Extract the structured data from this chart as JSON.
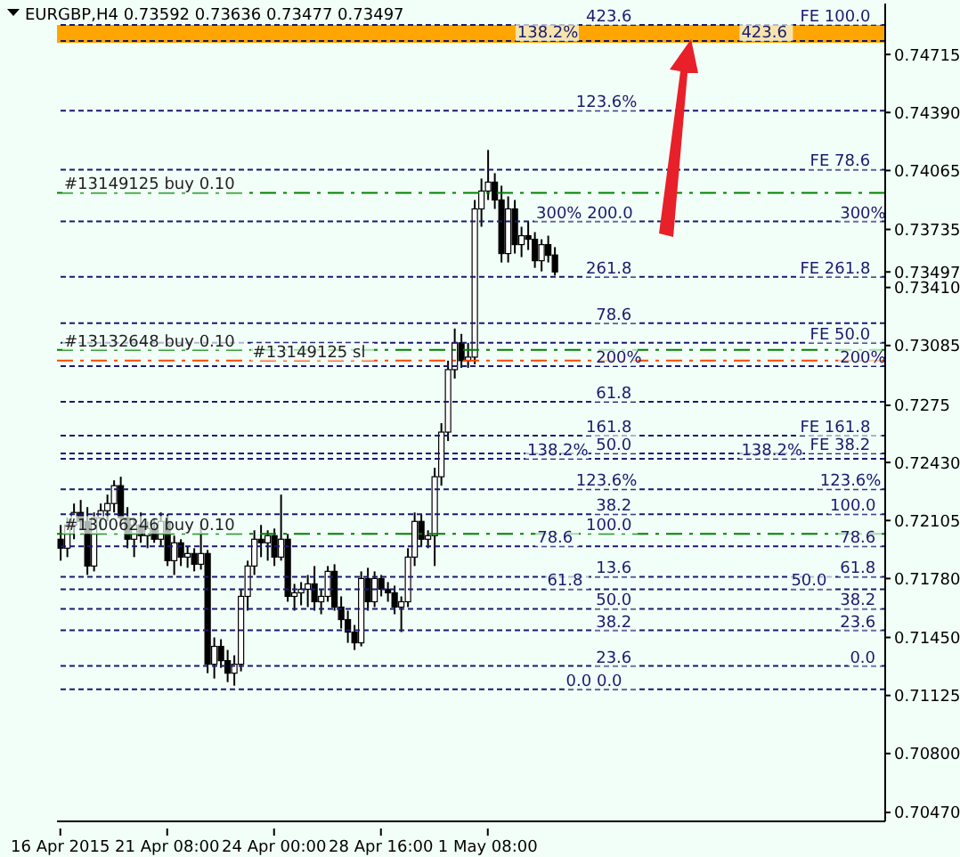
{
  "chart_data": {
    "type": "candlestick",
    "title": "EURGBP,H4  0.73592 0.73636 0.73477 0.73497",
    "categories": [
      "16 Apr 2015",
      null,
      null,
      null,
      null,
      null,
      null,
      null,
      null,
      null,
      null,
      null,
      null,
      null,
      null,
      null,
      "21 Apr 08:00",
      null,
      null,
      null,
      null,
      null,
      null,
      null,
      null,
      null,
      null,
      null,
      null,
      null,
      null,
      null,
      "24 Apr 00:00",
      null,
      null,
      null,
      null,
      null,
      null,
      null,
      null,
      null,
      null,
      null,
      null,
      null,
      null,
      null,
      "28 Apr 16:00",
      null,
      null,
      null,
      null,
      null,
      null,
      null,
      null,
      null,
      null,
      null,
      null,
      null,
      null,
      null,
      "1 May 08:00",
      null,
      null,
      null,
      null,
      null,
      null,
      null,
      null,
      null,
      null,
      null,
      null,
      null,
      null,
      null,
      null,
      null,
      null,
      null,
      null,
      null,
      null,
      null,
      null,
      null,
      null,
      null,
      null,
      null,
      null,
      null,
      null,
      null,
      null,
      null,
      null,
      null,
      null,
      null,
      null,
      null,
      null,
      null,
      null,
      null,
      null,
      null,
      null,
      null,
      null,
      null,
      null,
      null,
      null,
      null,
      null,
      null,
      null,
      null
    ],
    "ohlc": [
      [
        0.72,
        0.7208,
        0.7188,
        0.7195
      ],
      [
        0.7195,
        0.7212,
        0.719,
        0.7208
      ],
      [
        0.7208,
        0.722,
        0.72,
        0.7215
      ],
      [
        0.7215,
        0.7222,
        0.7205,
        0.721
      ],
      [
        0.721,
        0.7218,
        0.718,
        0.7185
      ],
      [
        0.7185,
        0.7215,
        0.7182,
        0.7212
      ],
      [
        0.7212,
        0.722,
        0.7205,
        0.7216
      ],
      [
        0.7216,
        0.7225,
        0.721,
        0.722
      ],
      [
        0.722,
        0.7233,
        0.7215,
        0.723
      ],
      [
        0.723,
        0.7235,
        0.721,
        0.7212
      ],
      [
        0.7212,
        0.7218,
        0.7195,
        0.72
      ],
      [
        0.72,
        0.7212,
        0.719,
        0.7208
      ],
      [
        0.7208,
        0.7215,
        0.7198,
        0.7202
      ],
      [
        0.7202,
        0.721,
        0.7195,
        0.7206
      ],
      [
        0.7206,
        0.7212,
        0.7198,
        0.72
      ],
      [
        0.72,
        0.7215,
        0.7196,
        0.721
      ],
      [
        0.721,
        0.7214,
        0.7185,
        0.7188
      ],
      [
        0.7188,
        0.7202,
        0.718,
        0.7198
      ],
      [
        0.7198,
        0.72,
        0.7185,
        0.719
      ],
      [
        0.719,
        0.7196,
        0.7184,
        0.7192
      ],
      [
        0.7192,
        0.7195,
        0.7182,
        0.7186
      ],
      [
        0.7186,
        0.721,
        0.7183,
        0.7192
      ],
      [
        0.7192,
        0.7194,
        0.7125,
        0.713
      ],
      [
        0.713,
        0.7145,
        0.7122,
        0.714
      ],
      [
        0.714,
        0.7144,
        0.7128,
        0.7132
      ],
      [
        0.7132,
        0.7138,
        0.712,
        0.7125
      ],
      [
        0.7125,
        0.7135,
        0.7118,
        0.713
      ],
      [
        0.713,
        0.7172,
        0.7126,
        0.7168
      ],
      [
        0.7168,
        0.7188,
        0.716,
        0.7185
      ],
      [
        0.7185,
        0.7205,
        0.718,
        0.72
      ],
      [
        0.72,
        0.7208,
        0.719,
        0.7198
      ],
      [
        0.7198,
        0.7205,
        0.7188,
        0.7202
      ],
      [
        0.7202,
        0.7206,
        0.7185,
        0.719
      ],
      [
        0.719,
        0.7225,
        0.7188,
        0.72
      ],
      [
        0.72,
        0.7203,
        0.7165,
        0.7168
      ],
      [
        0.7168,
        0.7175,
        0.716,
        0.717
      ],
      [
        0.717,
        0.7176,
        0.7163,
        0.7172
      ],
      [
        0.7172,
        0.718,
        0.7162,
        0.7175
      ],
      [
        0.7175,
        0.7185,
        0.716,
        0.7165
      ],
      [
        0.7165,
        0.7172,
        0.7158,
        0.7168
      ],
      [
        0.7168,
        0.7185,
        0.7165,
        0.7182
      ],
      [
        0.7182,
        0.7186,
        0.716,
        0.7162
      ],
      [
        0.7162,
        0.7168,
        0.715,
        0.7155
      ],
      [
        0.7155,
        0.716,
        0.7142,
        0.7148
      ],
      [
        0.7148,
        0.7152,
        0.7138,
        0.7142
      ],
      [
        0.7142,
        0.7182,
        0.714,
        0.7178
      ],
      [
        0.7178,
        0.7184,
        0.716,
        0.7165
      ],
      [
        0.7165,
        0.7182,
        0.7162,
        0.7178
      ],
      [
        0.7178,
        0.718,
        0.7168,
        0.7172
      ],
      [
        0.7172,
        0.7176,
        0.7165,
        0.717
      ],
      [
        0.717,
        0.7174,
        0.7158,
        0.7162
      ],
      [
        0.7162,
        0.7168,
        0.7148,
        0.7165
      ],
      [
        0.7165,
        0.7195,
        0.7162,
        0.719
      ],
      [
        0.719,
        0.7215,
        0.7185,
        0.721
      ],
      [
        0.721,
        0.7214,
        0.7196,
        0.72
      ],
      [
        0.72,
        0.7205,
        0.7195,
        0.7202
      ],
      [
        0.7202,
        0.724,
        0.7185,
        0.7235
      ],
      [
        0.7235,
        0.7265,
        0.723,
        0.726
      ],
      [
        0.726,
        0.73,
        0.7255,
        0.7295
      ],
      [
        0.7295,
        0.7318,
        0.729,
        0.731
      ],
      [
        0.731,
        0.7315,
        0.7296,
        0.73
      ],
      [
        0.73,
        0.731,
        0.7296,
        0.7302
      ],
      [
        0.7302,
        0.739,
        0.7298,
        0.7385
      ],
      [
        0.7385,
        0.7402,
        0.7375,
        0.7395
      ],
      [
        0.7395,
        0.7418,
        0.739,
        0.74
      ],
      [
        0.74,
        0.7405,
        0.7385,
        0.739
      ],
      [
        0.739,
        0.7398,
        0.7355,
        0.736
      ],
      [
        0.736,
        0.7392,
        0.7355,
        0.7385
      ],
      [
        0.7385,
        0.739,
        0.736,
        0.7365
      ],
      [
        0.7365,
        0.7375,
        0.7358,
        0.737
      ],
      [
        0.737,
        0.7378,
        0.7362,
        0.7368
      ],
      [
        0.7368,
        0.7372,
        0.7352,
        0.7356
      ],
      [
        0.7356,
        0.7368,
        0.735,
        0.7365
      ],
      [
        0.7365,
        0.737,
        0.7355,
        0.7359
      ],
      [
        0.73592,
        0.73636,
        0.73477,
        0.73497
      ],
      null,
      null,
      null,
      null,
      null,
      null,
      null,
      null,
      null,
      null,
      null,
      null,
      null,
      null,
      null,
      null,
      null,
      null,
      null,
      null,
      null,
      null,
      null,
      null,
      null,
      null,
      null,
      null,
      null,
      null,
      null,
      null,
      null,
      null,
      null,
      null,
      null,
      null,
      null,
      null,
      null,
      null,
      null,
      null,
      null,
      null,
      null,
      null,
      null
    ],
    "ylim": [
      0.7042,
      0.75
    ],
    "yticks": [
      0.74715,
      {
        "value": 0.7439,
        "label": "0.74390"
      },
      0.74065,
      0.73735,
      0.73497,
      {
        "value": 0.7341,
        "label": "0.73410"
      },
      0.73085,
      0.7275,
      {
        "value": 0.7243,
        "label": "0.72430"
      },
      0.72105,
      {
        "value": 0.7178,
        "label": "0.71780"
      },
      {
        "value": 0.7145,
        "label": "0.71450"
      },
      0.71125,
      {
        "value": 0.708,
        "label": "0.70800"
      },
      {
        "value": 0.7047,
        "label": "0.70470"
      }
    ],
    "bands": [
      {
        "axis": "y",
        "from": 0.7478,
        "to": 0.7488,
        "label": null,
        "color": "#ffa500"
      }
    ],
    "ref_lines": [
      {
        "axis": "y",
        "value": 0.7488,
        "label": "FE 100.0",
        "color": "#1a1a6e",
        "line_style": "dotted"
      },
      {
        "axis": "y",
        "value": 0.7479,
        "label": null,
        "color": "#1a1a6e",
        "line_style": "dotted"
      },
      {
        "axis": "y",
        "value": 0.744,
        "label": null,
        "color": "#1a1a6e",
        "line_style": "dotted"
      },
      {
        "axis": "y",
        "value": 0.7407,
        "label": "FE 78.6",
        "color": "#1a1a6e",
        "line_style": "dotted"
      },
      {
        "axis": "y",
        "value": 0.7394,
        "label": "#13149125 buy 0.10",
        "color": "#008000",
        "line_style": "dashed"
      },
      {
        "axis": "y",
        "value": 0.7378,
        "label": null,
        "color": "#1a1a6e",
        "line_style": "dotted"
      },
      {
        "axis": "y",
        "value": 0.7347,
        "label": "FE 261.8",
        "color": "#1a1a6e",
        "line_style": "dotted"
      },
      {
        "axis": "y",
        "value": 0.7321,
        "label": null,
        "color": "#1a1a6e",
        "line_style": "dotted"
      },
      {
        "axis": "y",
        "value": 0.731,
        "label": "FE 50.0",
        "color": "#1a1a6e",
        "line_style": "dotted"
      },
      {
        "axis": "y",
        "value": 0.7306,
        "label": "#13132648 buy 0.10",
        "color": "#008000",
        "line_style": "dashed"
      },
      {
        "axis": "y",
        "value": 0.73,
        "label": "#13149125 sl",
        "color": "#ff4500",
        "line_style": "dashed"
      },
      {
        "axis": "y",
        "value": 0.7297,
        "label": null,
        "color": "#1a1a6e",
        "line_style": "dotted"
      },
      {
        "axis": "y",
        "value": 0.7277,
        "label": null,
        "color": "#1a1a6e",
        "line_style": "dotted"
      },
      {
        "axis": "y",
        "value": 0.7258,
        "label": "FE 161.8",
        "color": "#1a1a6e",
        "line_style": "dotted"
      },
      {
        "axis": "y",
        "value": 0.7248,
        "label": "FE 38.2",
        "color": "#1a1a6e",
        "line_style": "dotted"
      },
      {
        "axis": "y",
        "value": 0.7245,
        "label": null,
        "color": "#1a1a6e",
        "line_style": "dotted"
      },
      {
        "axis": "y",
        "value": 0.7228,
        "label": null,
        "color": "#1a1a6e",
        "line_style": "dotted"
      },
      {
        "axis": "y",
        "value": 0.7214,
        "label": null,
        "color": "#1a1a6e",
        "line_style": "dotted"
      },
      {
        "axis": "y",
        "value": 0.7203,
        "label": "#13006246 buy 0.10",
        "color": "#008000",
        "line_style": "dashed"
      },
      {
        "axis": "y",
        "value": 0.7196,
        "label": null,
        "color": "#1a1a6e",
        "line_style": "dotted"
      },
      {
        "axis": "y",
        "value": 0.7179,
        "label": null,
        "color": "#1a1a6e",
        "line_style": "dotted"
      },
      {
        "axis": "y",
        "value": 0.7172,
        "label": null,
        "color": "#1a1a6e",
        "line_style": "dotted"
      },
      {
        "axis": "y",
        "value": 0.7161,
        "label": null,
        "color": "#1a1a6e",
        "line_style": "dotted"
      },
      {
        "axis": "y",
        "value": 0.7149,
        "label": null,
        "color": "#1a1a6e",
        "line_style": "dotted"
      },
      {
        "axis": "y",
        "value": 0.7129,
        "label": null,
        "color": "#1a1a6e",
        "line_style": "dotted"
      },
      {
        "axis": "y",
        "value": 0.7116,
        "label": null,
        "color": "#1a1a6e",
        "line_style": "dotted"
      }
    ],
    "annotations": [
      {
        "text": "423.6",
        "y": 0.7479
      },
      {
        "text": "300%",
        "y": 0.7378
      },
      {
        "text": "200%",
        "y": 0.7297
      },
      {
        "text": "138.2%",
        "y": 0.7245
      },
      {
        "text": "123.6%",
        "y": 0.7228
      },
      {
        "text": "100.0",
        "y": 0.7214
      },
      {
        "text": "78.6",
        "y": 0.7196
      },
      {
        "text": "61.8",
        "y": 0.7179
      },
      {
        "text": "50.0",
        "y": 0.7172
      },
      {
        "text": "38.2",
        "y": 0.7161
      },
      {
        "text": "23.6",
        "y": 0.7149
      },
      {
        "text": "0.0",
        "y": 0.7129
      },
      {
        "text": "423.6",
        "y": 0.749
      },
      {
        "text": "138.2%",
        "y": 0.7481
      },
      {
        "text": "123.6%",
        "y": 0.7442
      },
      {
        "text": "300% 200.0",
        "y": 0.738
      },
      {
        "text": "261.8",
        "y": 0.7349
      },
      {
        "text": "78.6",
        "y": 0.7323
      },
      {
        "text": "200%",
        "y": 0.7299
      },
      {
        "text": "61.8",
        "y": 0.7279
      },
      {
        "text": "161.8",
        "y": 0.726
      },
      {
        "text": "50.0",
        "y": 0.725
      },
      {
        "text": "138.2%",
        "y": 0.7247
      },
      {
        "text": "123.6%",
        "y": 0.723
      },
      {
        "text": "38.2",
        "y": 0.7216
      },
      {
        "text": "100.0",
        "y": 0.7205
      },
      {
        "text": "78.6",
        "y": 0.7198
      },
      {
        "text": "13.6",
        "y": 0.7181
      },
      {
        "text": "61.8",
        "y": 0.7174
      },
      {
        "text": "50.0",
        "y": 0.7163
      },
      {
        "text": "38.2",
        "y": 0.7151
      },
      {
        "text": "23.6",
        "y": 0.7131
      },
      {
        "text": "0.0 0.0",
        "y": 0.7118
      }
    ]
  }
}
